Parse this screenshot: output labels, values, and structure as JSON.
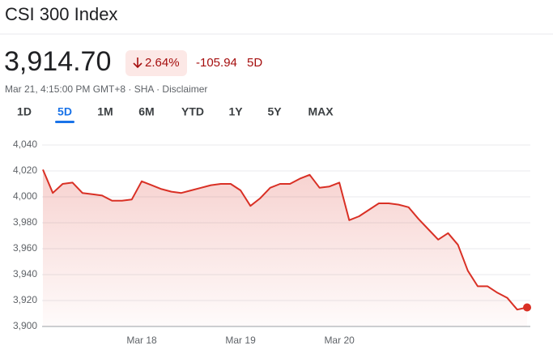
{
  "header": {
    "title": "CSI 300 Index",
    "price": "3,914.70",
    "change_pct": "2.64%",
    "change_abs": "-105.94",
    "change_period": "5D",
    "timestamp": "Mar 21, 4:15:00 PM GMT+8 · SHA · Disclaimer"
  },
  "tabs": {
    "items": [
      "1D",
      "5D",
      "1M",
      "6M",
      "YTD",
      "1Y",
      "5Y",
      "MAX"
    ],
    "selected": 1
  },
  "chart_data": {
    "type": "line",
    "color": "#d93025",
    "categories": [
      null,
      null,
      null,
      null,
      null,
      null,
      null,
      null,
      null,
      null,
      "Mar 18",
      null,
      null,
      null,
      null,
      null,
      null,
      null,
      null,
      null,
      "Mar 19",
      null,
      null,
      null,
      null,
      null,
      null,
      null,
      null,
      null,
      "Mar 20",
      null,
      null,
      null,
      null,
      null,
      null,
      null,
      null,
      null,
      null,
      null,
      null,
      null,
      null,
      null,
      null,
      null,
      null,
      null
    ],
    "values": [
      4021,
      4003,
      4010,
      4011,
      4003,
      4002,
      4001,
      3997,
      3997,
      3998,
      4012,
      4009,
      4006,
      4004,
      4003,
      4005,
      4007,
      4009,
      4010,
      4010,
      4005,
      3993,
      3999,
      4007,
      4010,
      4010,
      4014,
      4017,
      4007,
      4008,
      4011,
      3982,
      3985,
      3990,
      3995,
      3995,
      3994,
      3992,
      3983,
      3975,
      3967,
      3972,
      3963,
      3943,
      3931,
      3931,
      3926,
      3922,
      3913,
      3914.7
    ],
    "ylim": [
      3900,
      4040
    ],
    "yticks": [
      {
        "value": 3900,
        "label": "3,900"
      },
      {
        "value": 3920,
        "label": "3,920"
      },
      {
        "value": 3940,
        "label": "3,940"
      },
      {
        "value": 3960,
        "label": "3,960"
      },
      {
        "value": 3980,
        "label": "3,980"
      },
      {
        "value": 4000,
        "label": "4,000"
      },
      {
        "value": 4020,
        "label": "4,020"
      },
      {
        "value": 4040,
        "label": "4,040"
      }
    ],
    "grid": true
  }
}
